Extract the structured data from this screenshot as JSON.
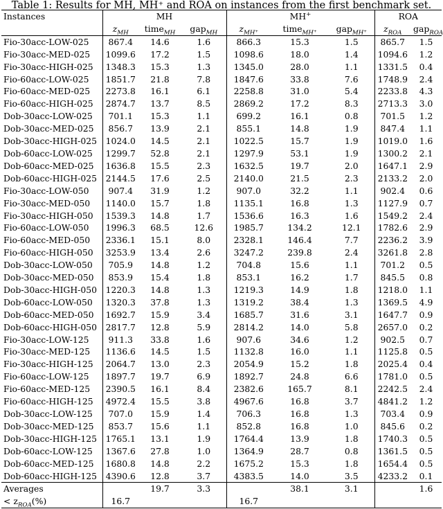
{
  "caption": "Table 1: Results for MH, MH⁺ and ROA on instances from the first benchmark set.",
  "groups": {
    "instances": "Instances",
    "mh": "MH",
    "mhp": "MH⁺",
    "roa": "ROA"
  },
  "columns": {
    "z_mh": "z",
    "z_mh_sub": "MH",
    "time_mh": "time",
    "time_mh_sub": "MH",
    "gap_mh": "gap",
    "gap_mh_sub": "MH",
    "z_mhp": "z",
    "z_mhp_sub": "MH⁺",
    "time_mhp": "time",
    "time_mhp_sub": "MH⁺",
    "gap_mhp": "gap",
    "gap_mhp_sub": "MH⁺",
    "z_roa": "z",
    "z_roa_sub": "ROA",
    "gap_roa": "gap",
    "gap_roa_sub": "ROA"
  },
  "rows": [
    {
      "name": "Fio-30acc-LOW-025",
      "z_mh": "867.4",
      "t_mh": "14.6",
      "g_mh": "1.6",
      "z_mhp": "866.3",
      "t_mhp": "15.3",
      "g_mhp": "1.5",
      "z_roa": "865.7",
      "g_roa": "1.5",
      "best": "roa"
    },
    {
      "name": "Fio-30acc-MED-025",
      "z_mh": "1099.6",
      "t_mh": "17.2",
      "g_mh": "1.5",
      "z_mhp": "1098.6",
      "t_mhp": "18.0",
      "g_mhp": "1.4",
      "z_roa": "1094.6",
      "g_roa": "1.2",
      "best": "roa"
    },
    {
      "name": "Fio-30acc-HIGH-025",
      "z_mh": "1348.3",
      "t_mh": "15.3",
      "g_mh": "1.3",
      "z_mhp": "1345.0",
      "t_mhp": "28.0",
      "g_mhp": "1.1",
      "z_roa": "1331.5",
      "g_roa": "0.4",
      "best": "roa"
    },
    {
      "name": "Fio-60acc-LOW-025",
      "z_mh": "1851.7",
      "t_mh": "21.8",
      "g_mh": "7.8",
      "z_mhp": "1847.6",
      "t_mhp": "33.8",
      "g_mhp": "7.6",
      "z_roa": "1748.9",
      "g_roa": "2.4",
      "best": "roa"
    },
    {
      "name": "Fio-60acc-MED-025",
      "z_mh": "2273.8",
      "t_mh": "16.1",
      "g_mh": "6.1",
      "z_mhp": "2258.8",
      "t_mhp": "31.0",
      "g_mhp": "5.4",
      "z_roa": "2233.8",
      "g_roa": "4.3",
      "best": "roa"
    },
    {
      "name": "Fio-60acc-HIGH-025",
      "z_mh": "2874.7",
      "t_mh": "13.7",
      "g_mh": "8.5",
      "z_mhp": "2869.2",
      "t_mhp": "17.2",
      "g_mhp": "8.3",
      "z_roa": "2713.3",
      "g_roa": "3.0",
      "best": "roa"
    },
    {
      "name": "Dob-30acc-LOW-025",
      "z_mh": "701.1",
      "t_mh": "15.3",
      "g_mh": "1.1",
      "z_mhp": "699.2",
      "t_mhp": "16.1",
      "g_mhp": "0.8",
      "z_roa": "701.5",
      "g_roa": "1.2",
      "best": "mhp"
    },
    {
      "name": "Dob-30acc-MED-025",
      "z_mh": "856.7",
      "t_mh": "13.9",
      "g_mh": "2.1",
      "z_mhp": "855.1",
      "t_mhp": "14.8",
      "g_mhp": "1.9",
      "z_roa": "847.4",
      "g_roa": "1.1",
      "best": "roa"
    },
    {
      "name": "Dob-30acc-HIGH-025",
      "z_mh": "1024.0",
      "t_mh": "14.5",
      "g_mh": "2.1",
      "z_mhp": "1022.5",
      "t_mhp": "15.7",
      "g_mhp": "1.9",
      "z_roa": "1019.0",
      "g_roa": "1.6",
      "best": "roa"
    },
    {
      "name": "Dob-60acc-LOW-025",
      "z_mh": "1299.7",
      "t_mh": "52.8",
      "g_mh": "2.1",
      "z_mhp": "1297.9",
      "t_mhp": "53.1",
      "g_mhp": "1.9",
      "z_roa": "1300.2",
      "g_roa": "2.1",
      "best": "mhp"
    },
    {
      "name": "Dob-60acc-MED-025",
      "z_mh": "1636.8",
      "t_mh": "15.5",
      "g_mh": "2.3",
      "z_mhp": "1632.5",
      "t_mhp": "19.7",
      "g_mhp": "2.0",
      "z_roa": "1647.1",
      "g_roa": "2.9",
      "best": "mhp"
    },
    {
      "name": "Dob-60acc-HIGH-025",
      "z_mh": "2144.5",
      "t_mh": "17.6",
      "g_mh": "2.5",
      "z_mhp": "2140.0",
      "t_mhp": "21.5",
      "g_mhp": "2.3",
      "z_roa": "2133.2",
      "g_roa": "2.0",
      "best": "roa"
    },
    {
      "name": "Fio-30acc-LOW-050",
      "z_mh": "907.4",
      "t_mh": "31.9",
      "g_mh": "1.2",
      "z_mhp": "907.0",
      "t_mhp": "32.2",
      "g_mhp": "1.1",
      "z_roa": "902.4",
      "g_roa": "0.6",
      "best": "roa"
    },
    {
      "name": "Fio-30acc-MED-050",
      "z_mh": "1140.0",
      "t_mh": "15.7",
      "g_mh": "1.8",
      "z_mhp": "1135.1",
      "t_mhp": "16.8",
      "g_mhp": "1.3",
      "z_roa": "1127.9",
      "g_roa": "0.7",
      "best": "roa"
    },
    {
      "name": "Fio-30acc-HIGH-050",
      "z_mh": "1539.3",
      "t_mh": "14.8",
      "g_mh": "1.7",
      "z_mhp": "1536.6",
      "t_mhp": "16.3",
      "g_mhp": "1.6",
      "z_roa": "1549.2",
      "g_roa": "2.4",
      "best": "mhp"
    },
    {
      "name": "Fio-60acc-LOW-050",
      "z_mh": "1996.3",
      "t_mh": "68.5",
      "g_mh": "12.6",
      "z_mhp": "1985.7",
      "t_mhp": "134.2",
      "g_mhp": "12.1",
      "z_roa": "1782.6",
      "g_roa": "2.9",
      "best": "roa"
    },
    {
      "name": "Fio-60acc-MED-050",
      "z_mh": "2336.1",
      "t_mh": "15.1",
      "g_mh": "8.0",
      "z_mhp": "2328.1",
      "t_mhp": "146.4",
      "g_mhp": "7.7",
      "z_roa": "2236.2",
      "g_roa": "3.9",
      "best": "roa"
    },
    {
      "name": "Fio-60acc-HIGH-050",
      "z_mh": "3253.9",
      "t_mh": "13.4",
      "g_mh": "2.6",
      "z_mhp": "3247.2",
      "t_mhp": "239.8",
      "g_mhp": "2.4",
      "z_roa": "3261.8",
      "g_roa": "2.8",
      "best": "mhp"
    },
    {
      "name": "Dob-30acc-LOW-050",
      "z_mh": "705.9",
      "t_mh": "14.8",
      "g_mh": "1.2",
      "z_mhp": "704.8",
      "t_mhp": "15.6",
      "g_mhp": "1.1",
      "z_roa": "701.2",
      "g_roa": "0.5",
      "best": "roa"
    },
    {
      "name": "Dob-30acc-MED-050",
      "z_mh": "853.9",
      "t_mh": "15.4",
      "g_mh": "1.8",
      "z_mhp": "853.1",
      "t_mhp": "16.2",
      "g_mhp": "1.7",
      "z_roa": "845.5",
      "g_roa": "0.8",
      "best": "roa"
    },
    {
      "name": "Dob-30acc-HIGH-050",
      "z_mh": "1220.3",
      "t_mh": "14.8",
      "g_mh": "1.3",
      "z_mhp": "1219.3",
      "t_mhp": "14.9",
      "g_mhp": "1.8",
      "z_roa": "1218.0",
      "g_roa": "1.1",
      "best": "roa"
    },
    {
      "name": "Dob-60acc-LOW-050",
      "z_mh": "1320.3",
      "t_mh": "37.8",
      "g_mh": "1.3",
      "z_mhp": "1319.2",
      "t_mhp": "38.4",
      "g_mhp": "1.3",
      "z_roa": "1369.5",
      "g_roa": "4.9",
      "best": "mhp"
    },
    {
      "name": "Dob-60acc-MED-050",
      "z_mh": "1692.7",
      "t_mh": "15.9",
      "g_mh": "3.4",
      "z_mhp": "1685.7",
      "t_mhp": "31.6",
      "g_mhp": "3.1",
      "z_roa": "1647.7",
      "g_roa": "0.9",
      "best": "roa"
    },
    {
      "name": "Dob-60acc-HIGH-050",
      "z_mh": "2817.7",
      "t_mh": "12.8",
      "g_mh": "5.9",
      "z_mhp": "2814.2",
      "t_mhp": "14.0",
      "g_mhp": "5.8",
      "z_roa": "2657.0",
      "g_roa": "0.2",
      "best": "roa"
    },
    {
      "name": "Fio-30acc-LOW-125",
      "z_mh": "911.3",
      "t_mh": "33.8",
      "g_mh": "1.6",
      "z_mhp": "907.6",
      "t_mhp": "34.6",
      "g_mhp": "1.2",
      "z_roa": "902.5",
      "g_roa": "0.7",
      "best": "roa"
    },
    {
      "name": "Fio-30acc-MED-125",
      "z_mh": "1136.6",
      "t_mh": "14.5",
      "g_mh": "1.5",
      "z_mhp": "1132.8",
      "t_mhp": "16.0",
      "g_mhp": "1.1",
      "z_roa": "1125.8",
      "g_roa": "0.5",
      "best": "roa"
    },
    {
      "name": "Fio-30acc-HIGH-125",
      "z_mh": "2064.7",
      "t_mh": "13.0",
      "g_mh": "2.3",
      "z_mhp": "2054.9",
      "t_mhp": "15.2",
      "g_mhp": "1.8",
      "z_roa": "2025.4",
      "g_roa": "0.4",
      "best": "roa"
    },
    {
      "name": "Fio-60acc-LOW-125",
      "z_mh": "1897.7",
      "t_mh": "19.7",
      "g_mh": "6.9",
      "z_mhp": "1892.7",
      "t_mhp": "24.8",
      "g_mhp": "6.6",
      "z_roa": "1781.0",
      "g_roa": "0.5",
      "best": "roa"
    },
    {
      "name": "Fio-60acc-MED-125",
      "z_mh": "2390.5",
      "t_mh": "16.1",
      "g_mh": "8.4",
      "z_mhp": "2382.6",
      "t_mhp": "165.7",
      "g_mhp": "8.1",
      "z_roa": "2242.5",
      "g_roa": "2.4",
      "best": "roa"
    },
    {
      "name": "Fio-60acc-HIGH-125",
      "z_mh": "4972.4",
      "t_mh": "15.5",
      "g_mh": "3.8",
      "z_mhp": "4967.6",
      "t_mhp": "16.8",
      "g_mhp": "3.7",
      "z_roa": "4841.2",
      "g_roa": "1.2",
      "best": "roa"
    },
    {
      "name": "Dob-30acc-LOW-125",
      "z_mh": "707.0",
      "t_mh": "15.9",
      "g_mh": "1.4",
      "z_mhp": "706.3",
      "t_mhp": "16.8",
      "g_mhp": "1.3",
      "z_roa": "703.4",
      "g_roa": "0.9",
      "best": "roa"
    },
    {
      "name": "Dob-30acc-MED-125",
      "z_mh": "853.7",
      "t_mh": "15.6",
      "g_mh": "1.1",
      "z_mhp": "852.8",
      "t_mhp": "16.8",
      "g_mhp": "1.0",
      "z_roa": "845.6",
      "g_roa": "0.2",
      "best": "roa"
    },
    {
      "name": "Dob-30acc-HIGH-125",
      "z_mh": "1765.1",
      "t_mh": "13.1",
      "g_mh": "1.9",
      "z_mhp": "1764.4",
      "t_mhp": "13.9",
      "g_mhp": "1.8",
      "z_roa": "1740.3",
      "g_roa": "0.5",
      "best": "roa"
    },
    {
      "name": "Dob-60acc-LOW-125",
      "z_mh": "1367.6",
      "t_mh": "27.8",
      "g_mh": "1.0",
      "z_mhp": "1364.9",
      "t_mhp": "28.7",
      "g_mhp": "0.8",
      "z_roa": "1361.5",
      "g_roa": "0.5",
      "best": "roa"
    },
    {
      "name": "Dob-60acc-MED-125",
      "z_mh": "1680.8",
      "t_mh": "14.8",
      "g_mh": "2.2",
      "z_mhp": "1675.2",
      "t_mhp": "15.3",
      "g_mhp": "1.8",
      "z_roa": "1654.4",
      "g_roa": "0.5",
      "best": "roa"
    },
    {
      "name": "Dob-60acc-HIGH-125",
      "z_mh": "4390.6",
      "t_mh": "12.8",
      "g_mh": "3.7",
      "z_mhp": "4383.5",
      "t_mhp": "14.0",
      "g_mhp": "3.5",
      "z_roa": "4233.2",
      "g_roa": "0.1",
      "best": "roa"
    }
  ],
  "averages": {
    "label": "Averages",
    "t_mh": "19.7",
    "g_mh": "3.3",
    "t_mhp": "38.1",
    "g_mhp": "3.1",
    "g_roa": "1.6"
  },
  "lt_roa": {
    "label_prefix": "< z",
    "label_sub": "ROA",
    "label_suffix": "(%)",
    "mh": "16.7",
    "mhp": "16.7"
  }
}
